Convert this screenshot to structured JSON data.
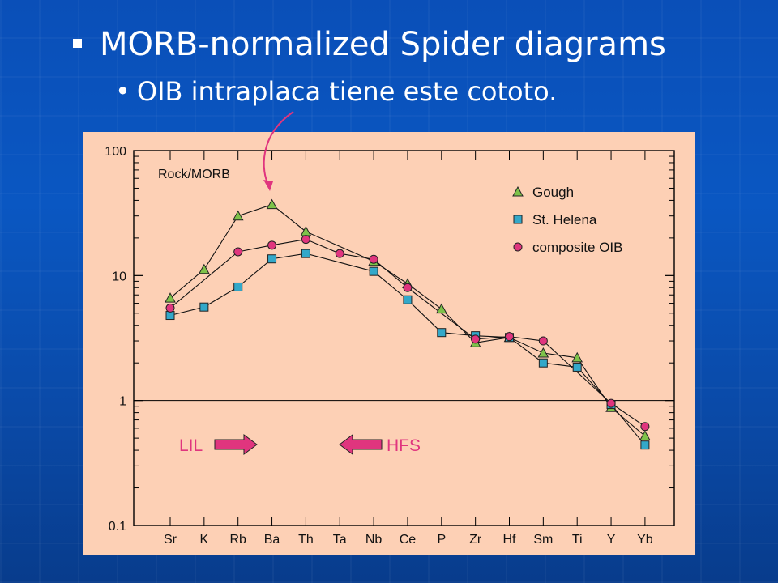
{
  "slide": {
    "heading": "MORB-normalized Spider diagrams",
    "subheading": "OIB intraplaca tiene este cototo."
  },
  "chart_data": {
    "type": "line",
    "yscale": "log",
    "ylim": [
      0.1,
      100
    ],
    "ylabel": "Rock/MORB",
    "yticks": [
      "100",
      "10",
      "1",
      "0.1"
    ],
    "categories": [
      "Sr",
      "K",
      "Rb",
      "Ba",
      "Th",
      "Ta",
      "Nb",
      "Ce",
      "P",
      "Zr",
      "Hf",
      "Sm",
      "Ti",
      "Y",
      "Yb"
    ],
    "series": [
      {
        "name": "Gough",
        "marker": "triangle",
        "color": "#7ec24a",
        "values": [
          6.6,
          11.2,
          30,
          37,
          22.5,
          null,
          13,
          8.6,
          5.4,
          2.9,
          3.2,
          2.4,
          2.2,
          0.88,
          0.52
        ]
      },
      {
        "name": "St. Helena",
        "marker": "square",
        "color": "#33a8c9",
        "values": [
          4.8,
          5.6,
          8.1,
          13.6,
          15,
          null,
          10.8,
          6.4,
          3.5,
          3.3,
          3.2,
          2.0,
          1.85,
          0.93,
          0.44
        ]
      },
      {
        "name": "composite OIB",
        "marker": "circle",
        "color": "#e0357e",
        "values": [
          5.5,
          null,
          15.5,
          17.5,
          19.5,
          15,
          13.5,
          8,
          null,
          3.1,
          3.25,
          3.0,
          null,
          0.95,
          0.62
        ]
      }
    ],
    "annotations": {
      "lil": "LIL",
      "hfs": "HFS"
    },
    "reference_line": 1,
    "grid": false,
    "legend_position": "top-right",
    "colors": {
      "background": "#fdd0b5",
      "arrow": "#e0357e",
      "callout": "#e0357e"
    }
  }
}
